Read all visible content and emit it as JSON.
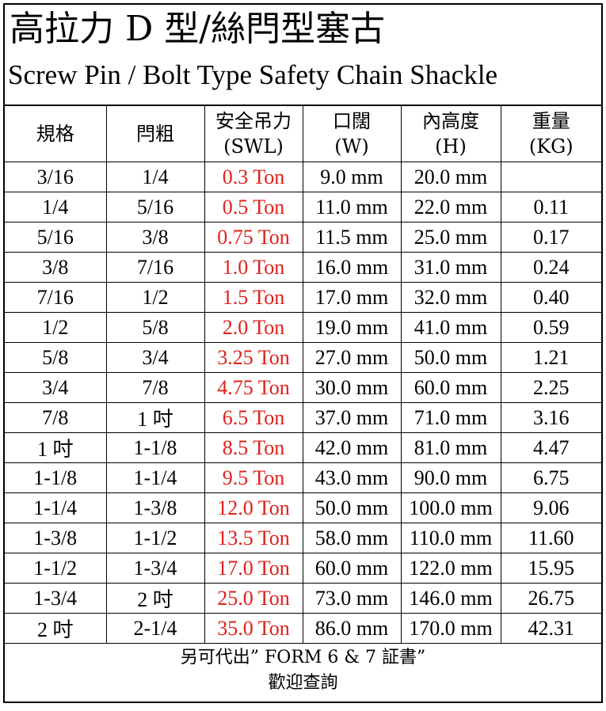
{
  "title": {
    "chinese": "高拉力 D 型/絲閂型塞古",
    "english": "Screw Pin / Bolt Type Safety Chain Shackle"
  },
  "colors": {
    "swl_text": "#e0201b",
    "border": "#000000"
  },
  "table": {
    "headers": [
      {
        "line1": "規格",
        "line2": ""
      },
      {
        "line1": "閂粗",
        "line2": ""
      },
      {
        "line1": "安全吊力",
        "line2": "(SWL)"
      },
      {
        "line1": "口闊",
        "line2": "(W)"
      },
      {
        "line1": "內高度",
        "line2": "(H)"
      },
      {
        "line1": "重量",
        "line2": "(KG)"
      }
    ],
    "rows": [
      [
        "3/16",
        "1/4",
        "0.3 Ton",
        "9.0 mm",
        "20.0 mm",
        ""
      ],
      [
        "1/4",
        "5/16",
        "0.5 Ton",
        "11.0 mm",
        "22.0 mm",
        "0.11"
      ],
      [
        "5/16",
        "3/8",
        "0.75 Ton",
        "11.5 mm",
        "25.0 mm",
        "0.17"
      ],
      [
        "3/8",
        "7/16",
        "1.0 Ton",
        "16.0 mm",
        "31.0 mm",
        "0.24"
      ],
      [
        "7/16",
        "1/2",
        "1.5 Ton",
        "17.0 mm",
        "32.0 mm",
        "0.40"
      ],
      [
        "1/2",
        "5/8",
        "2.0 Ton",
        "19.0 mm",
        "41.0 mm",
        "0.59"
      ],
      [
        "5/8",
        "3/4",
        "3.25 Ton",
        "27.0 mm",
        "50.0 mm",
        "1.21"
      ],
      [
        "3/4",
        "7/8",
        "4.75 Ton",
        "30.0 mm",
        "60.0 mm",
        "2.25"
      ],
      [
        "7/8",
        "1 吋",
        "6.5 Ton",
        "37.0 mm",
        "71.0 mm",
        "3.16"
      ],
      [
        "1 吋",
        "1-1/8",
        "8.5 Ton",
        "42.0 mm",
        "81.0 mm",
        "4.47"
      ],
      [
        "1-1/8",
        "1-1/4",
        "9.5 Ton",
        "43.0 mm",
        "90.0 mm",
        "6.75"
      ],
      [
        "1-1/4",
        "1-3/8",
        "12.0 Ton",
        "50.0 mm",
        "100.0 mm",
        "9.06"
      ],
      [
        "1-3/8",
        "1-1/2",
        "13.5 Ton",
        "58.0 mm",
        "110.0 mm",
        "11.60"
      ],
      [
        "1-1/2",
        "1-3/4",
        "17.0 Ton",
        "60.0 mm",
        "122.0 mm",
        "15.95"
      ],
      [
        "1-3/4",
        "2 吋",
        "25.0 Ton",
        "73.0 mm",
        "146.0 mm",
        "26.75"
      ],
      [
        "2 吋",
        "2-1/4",
        "35.0 Ton",
        "86.0 mm",
        "170.0 mm",
        "42.31"
      ]
    ]
  },
  "footer": {
    "line1": "另可代出” FORM 6 & 7 証書”",
    "line2": "歡迎查詢"
  }
}
